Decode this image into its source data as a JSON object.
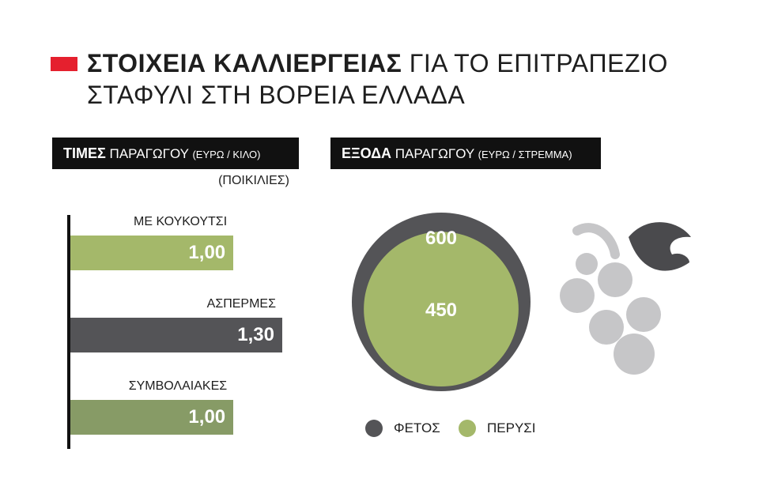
{
  "title": {
    "bold": "ΣΤΟΙΧΕΙΑ ΚΑΛΛΙΕΡΓΕΙΑΣ",
    "rest": " ΓΙΑ ΤΟ ΕΠΙΤΡΑΠΕΖΙΟ",
    "line2": "ΣΤΑΦΥΛΙ ΣΤΗ ΒΟΡΕΙΑ ΕΛΛΑΔΑ"
  },
  "left_panel": {
    "header_bold": "ΤΙΜΕΣ",
    "header_text": " ΠΑΡΑΓΩΓΟΥ ",
    "header_small": "(ΕΥΡΩ / ΚΙΛΟ)",
    "note": "(ΠΟΙΚΙΛΙΕΣ)"
  },
  "right_panel": {
    "header_bold": "ΕΞΟΔΑ",
    "header_text": " ΠΑΡΑΓΩΓΟΥ ",
    "header_small": "(ΕΥΡΩ / ΣΤΡΕΜΜΑ)"
  },
  "colors": {
    "accent_red": "#e5202e",
    "green": "#a4b86a",
    "dark_green": "#879b66",
    "dark_gray": "#545457",
    "grape_gray": "#c6c6c8",
    "leaf": "#4a4a4d"
  },
  "chart_data": [
    {
      "type": "bar",
      "orientation": "horizontal",
      "categories": [
        "ΜΕ ΚΟΥΚΟΥΤΣΙ",
        "ΑΣΠΕΡΜΕΣ",
        "ΣΥΜΒΟΛΑΙΑΚΕΣ"
      ],
      "values": [
        1.0,
        1.3,
        1.0
      ],
      "value_labels": [
        "1,00",
        "1,30",
        "1,00"
      ],
      "bar_colors": [
        "#a4b86a",
        "#545457",
        "#879b66"
      ],
      "xlim": [
        0,
        1.3
      ]
    },
    {
      "type": "bubble",
      "series": [
        {
          "name": "ΦΕΤΟΣ",
          "value": 600,
          "label": "600",
          "color": "#545457"
        },
        {
          "name": "ΠΕΡΥΣΙ",
          "value": 450,
          "label": "450",
          "color": "#a4b86a"
        }
      ],
      "legend": "bottom"
    }
  ],
  "icons": [
    "grapes-icon"
  ]
}
